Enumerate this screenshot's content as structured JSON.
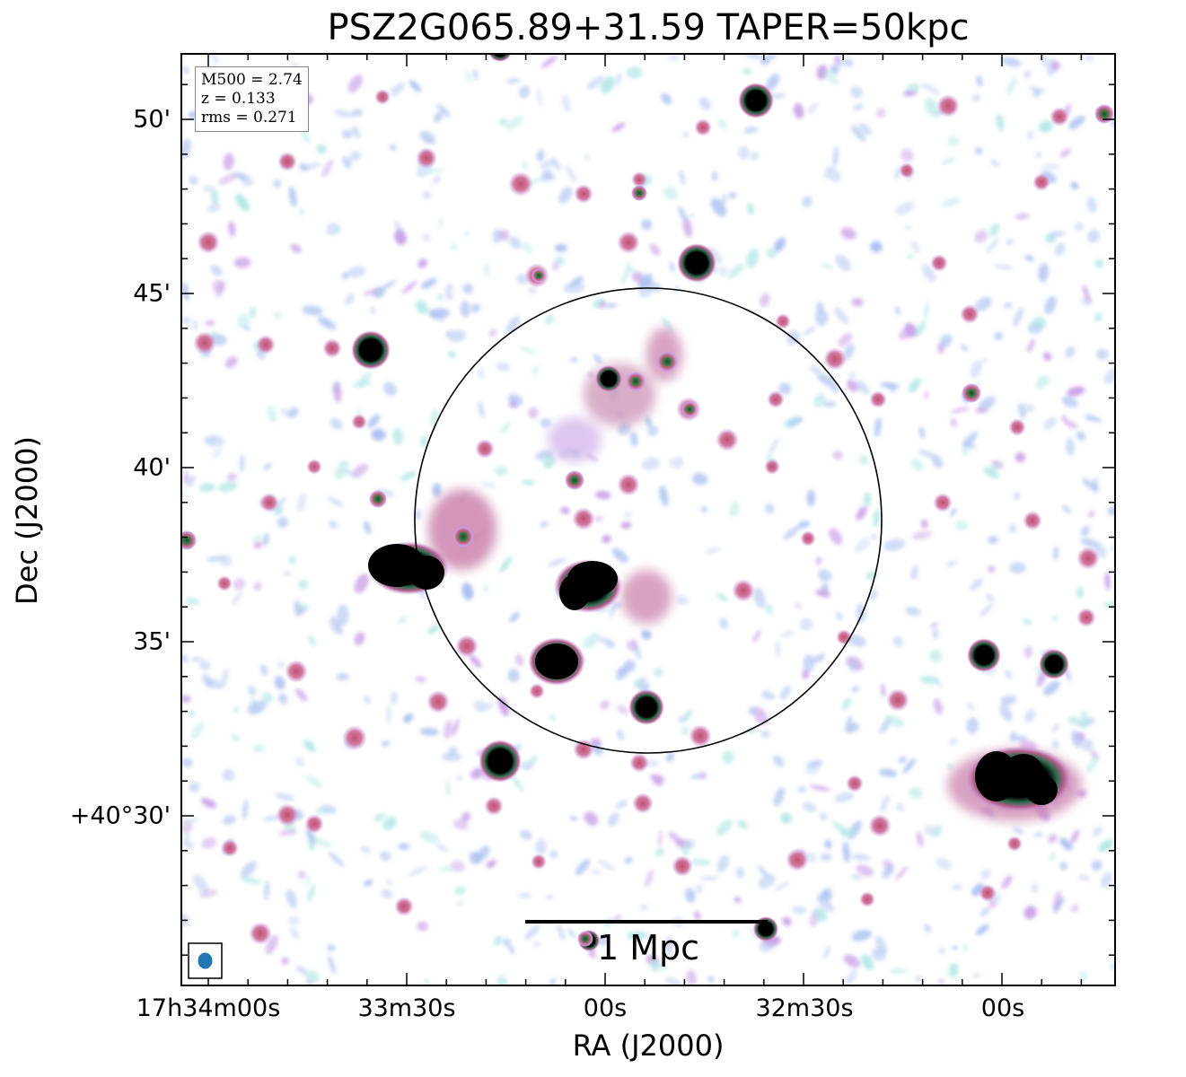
{
  "title": "PSZ2G065.89+31.59 TAPER=50kpc",
  "axes": {
    "xlabel": "RA (J2000)",
    "ylabel": "Dec (J2000)",
    "x_ticks": [
      "17h34m00s",
      "33m30s",
      "00s",
      "32m30s",
      "00s"
    ],
    "y_ticks": [
      "50'",
      "45'",
      "40'",
      "35'",
      "+40°30'"
    ]
  },
  "info_box": {
    "mass": "M500 = 2.74",
    "redshift": "z = 0.133",
    "rms": "rms = 0.271"
  },
  "scale_bar": {
    "label": "1 Mpc"
  },
  "colors": {
    "frame": "#000000",
    "beam": "#1f77b4",
    "source": "#000000",
    "halo": "#c86496",
    "noise_light": "#b4c8f0",
    "noise_cyan": "#b4e6e6",
    "noise_purple": "#c8a0e6"
  }
}
